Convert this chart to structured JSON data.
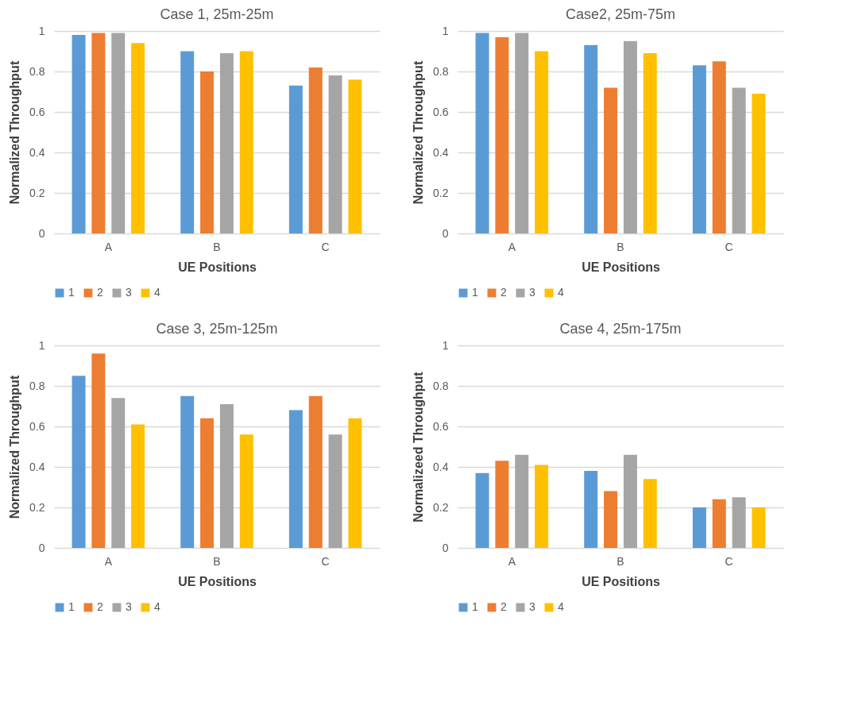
{
  "chart_data": [
    {
      "type": "bar",
      "title": "Case 1, 25m-25m",
      "xlabel": "UE Positions",
      "ylabel": "Normalized Throughput",
      "categories": [
        "A",
        "B",
        "C"
      ],
      "ylim": [
        0,
        1
      ],
      "yticks": [
        0,
        0.2,
        0.4,
        0.6,
        0.8,
        1
      ],
      "grid": "y",
      "legend": "bottom",
      "series": [
        {
          "name": "1",
          "color": "#5b9bd5",
          "values": [
            0.98,
            0.9,
            0.73
          ]
        },
        {
          "name": "2",
          "color": "#ed7d31",
          "values": [
            0.99,
            0.8,
            0.82
          ]
        },
        {
          "name": "3",
          "color": "#a5a5a5",
          "values": [
            0.99,
            0.89,
            0.78
          ]
        },
        {
          "name": "4",
          "color": "#ffc000",
          "values": [
            0.94,
            0.9,
            0.76
          ]
        }
      ]
    },
    {
      "type": "bar",
      "title": "Case2, 25m-75m",
      "xlabel": "UE Positions",
      "ylabel": "Normalized Throughput",
      "categories": [
        "A",
        "B",
        "C"
      ],
      "ylim": [
        0,
        1
      ],
      "yticks": [
        0,
        0.2,
        0.4,
        0.6,
        0.8,
        1
      ],
      "grid": "y",
      "legend": "bottom",
      "series": [
        {
          "name": "1",
          "color": "#5b9bd5",
          "values": [
            0.99,
            0.93,
            0.83
          ]
        },
        {
          "name": "2",
          "color": "#ed7d31",
          "values": [
            0.97,
            0.72,
            0.85
          ]
        },
        {
          "name": "3",
          "color": "#a5a5a5",
          "values": [
            0.99,
            0.95,
            0.72
          ]
        },
        {
          "name": "4",
          "color": "#ffc000",
          "values": [
            0.9,
            0.89,
            0.69
          ]
        }
      ]
    },
    {
      "type": "bar",
      "title": "Case 3, 25m-125m",
      "xlabel": "UE Positions",
      "ylabel": "Normalized Throughput",
      "categories": [
        "A",
        "B",
        "C"
      ],
      "ylim": [
        0,
        1
      ],
      "yticks": [
        0,
        0.2,
        0.4,
        0.6,
        0.8,
        1
      ],
      "grid": "y",
      "legend": "bottom",
      "series": [
        {
          "name": "1",
          "color": "#5b9bd5",
          "values": [
            0.85,
            0.75,
            0.68
          ]
        },
        {
          "name": "2",
          "color": "#ed7d31",
          "values": [
            0.96,
            0.64,
            0.75
          ]
        },
        {
          "name": "3",
          "color": "#a5a5a5",
          "values": [
            0.74,
            0.71,
            0.56
          ]
        },
        {
          "name": "4",
          "color": "#ffc000",
          "values": [
            0.61,
            0.56,
            0.64
          ]
        }
      ]
    },
    {
      "type": "bar",
      "title": "Case 4, 25m-175m",
      "xlabel": "UE Positions",
      "ylabel": "Normalizeed Throughput",
      "categories": [
        "A",
        "B",
        "C"
      ],
      "ylim": [
        0,
        1
      ],
      "yticks": [
        0,
        0.2,
        0.4,
        0.6,
        0.8,
        1
      ],
      "grid": "y",
      "legend": "bottom",
      "series": [
        {
          "name": "1",
          "color": "#5b9bd5",
          "values": [
            0.37,
            0.38,
            0.2
          ]
        },
        {
          "name": "2",
          "color": "#ed7d31",
          "values": [
            0.43,
            0.28,
            0.24
          ]
        },
        {
          "name": "3",
          "color": "#a5a5a5",
          "values": [
            0.46,
            0.46,
            0.25
          ]
        },
        {
          "name": "4",
          "color": "#ffc000",
          "values": [
            0.41,
            0.34,
            0.2
          ]
        }
      ]
    }
  ]
}
